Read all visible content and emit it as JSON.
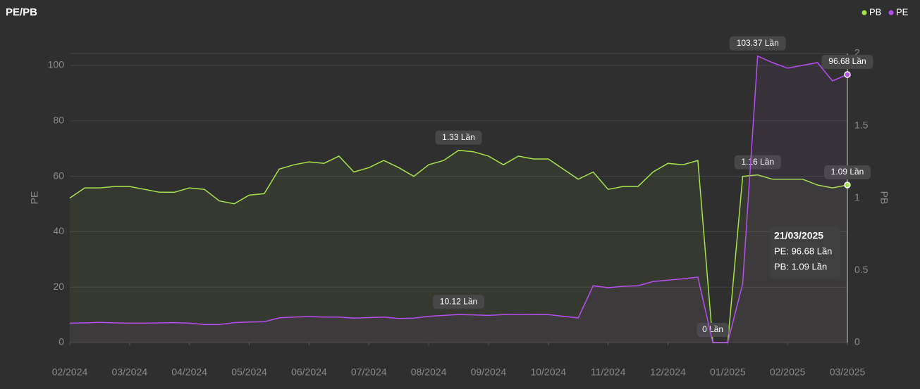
{
  "chart_data": {
    "type": "line",
    "title": "PE/PB",
    "y_label": "PE",
    "y2_label": "PB",
    "legend": "top-right",
    "x": [
      "01/02/2024",
      "08/02/2024",
      "15/02/2024",
      "22/02/2024",
      "01/03/2024",
      "08/03/2024",
      "15/03/2024",
      "22/03/2024",
      "01/04/2024",
      "08/04/2024",
      "15/04/2024",
      "22/04/2024",
      "01/05/2024",
      "08/05/2024",
      "15/05/2024",
      "22/05/2024",
      "01/06/2024",
      "08/06/2024",
      "15/06/2024",
      "22/06/2024",
      "01/07/2024",
      "08/07/2024",
      "15/07/2024",
      "22/07/2024",
      "01/08/2024",
      "08/08/2024",
      "15/08/2024",
      "22/08/2024",
      "01/09/2024",
      "08/09/2024",
      "15/09/2024",
      "22/09/2024",
      "01/10/2024",
      "08/10/2024",
      "15/10/2024",
      "22/10/2024",
      "01/11/2024",
      "08/11/2024",
      "15/11/2024",
      "22/11/2024",
      "01/12/2024",
      "08/12/2024",
      "15/12/2024",
      "22/12/2024",
      "01/01/2025",
      "08/01/2025",
      "15/01/2025",
      "22/01/2025",
      "01/02/2025",
      "08/02/2025",
      "15/02/2025",
      "22/02/2025",
      "21/03/2025"
    ],
    "xticks": [
      {
        "value": "01/02/2024",
        "label": "02/2024"
      },
      {
        "value": "01/03/2024",
        "label": "03/2024"
      },
      {
        "value": "01/04/2024",
        "label": "04/2024"
      },
      {
        "value": "01/05/2024",
        "label": "05/2024"
      },
      {
        "value": "01/06/2024",
        "label": "06/2024"
      },
      {
        "value": "01/07/2024",
        "label": "07/2024"
      },
      {
        "value": "01/08/2024",
        "label": "08/2024"
      },
      {
        "value": "01/09/2024",
        "label": "09/2024"
      },
      {
        "value": "01/10/2024",
        "label": "10/2024"
      },
      {
        "value": "01/11/2024",
        "label": "11/2024"
      },
      {
        "value": "01/12/2024",
        "label": "12/2024"
      },
      {
        "value": "01/01/2025",
        "label": "01/2025"
      },
      {
        "value": "01/02/2025",
        "label": "02/2025"
      },
      {
        "value": "21/03/2025",
        "label": "03/2025"
      }
    ],
    "ylim": [
      0,
      104.3
    ],
    "yticks": [
      0,
      20,
      40,
      60,
      80,
      100
    ],
    "y2lim": [
      0,
      2
    ],
    "y2ticks": [
      0,
      0.5,
      1,
      1.5,
      2
    ],
    "grid": true,
    "series": [
      {
        "name": "PB",
        "color": "#a6e34b",
        "axis": "y2",
        "values": [
          1.0,
          1.07,
          1.07,
          1.08,
          1.08,
          1.06,
          1.04,
          1.04,
          1.07,
          1.06,
          0.98,
          0.96,
          1.02,
          1.03,
          1.2,
          1.23,
          1.25,
          1.24,
          1.29,
          1.18,
          1.21,
          1.26,
          1.21,
          1.15,
          1.23,
          1.26,
          1.33,
          1.32,
          1.29,
          1.23,
          1.29,
          1.27,
          1.27,
          1.2,
          1.13,
          1.18,
          1.06,
          1.08,
          1.08,
          1.18,
          1.24,
          1.23,
          1.26,
          0,
          0,
          1.15,
          1.16,
          1.13,
          1.13,
          1.13,
          1.09,
          1.07,
          1.09
        ],
        "value_labels": [
          null,
          null,
          null,
          null,
          null,
          null,
          null,
          null,
          null,
          null,
          null,
          null,
          null,
          null,
          null,
          null,
          null,
          null,
          null,
          null,
          null,
          null,
          null,
          null,
          null,
          null,
          "1.33 Lần",
          null,
          null,
          null,
          null,
          null,
          null,
          null,
          null,
          null,
          null,
          null,
          null,
          null,
          null,
          null,
          null,
          "0 Lần",
          null,
          null,
          "1.16 Lần",
          null,
          null,
          null,
          null,
          null,
          "1.09 Lần"
        ]
      },
      {
        "name": "PE",
        "color": "#b64ef0",
        "values": [
          7.0,
          7.1,
          7.3,
          7.1,
          7.0,
          7.0,
          7.1,
          7.2,
          7.0,
          6.5,
          6.5,
          7.2,
          7.4,
          7.5,
          8.9,
          9.2,
          9.4,
          9.2,
          9.2,
          8.8,
          9.0,
          9.2,
          8.7,
          8.8,
          9.5,
          9.8,
          10.12,
          10.0,
          9.8,
          10.1,
          10.2,
          10.1,
          10.1,
          9.5,
          8.9,
          20.5,
          19.8,
          20.3,
          20.5,
          22.0,
          22.5,
          23.0,
          23.6,
          0,
          0,
          21.3,
          103.37,
          101,
          99,
          100,
          101,
          94.4,
          96.68
        ],
        "value_labels": [
          null,
          null,
          null,
          null,
          null,
          null,
          null,
          null,
          null,
          null,
          null,
          null,
          null,
          null,
          null,
          null,
          null,
          null,
          null,
          null,
          null,
          null,
          null,
          null,
          null,
          null,
          "10.12 Lần",
          null,
          null,
          null,
          null,
          null,
          null,
          null,
          null,
          null,
          null,
          null,
          null,
          null,
          null,
          null,
          null,
          null,
          null,
          null,
          "103.37 Lần",
          null,
          null,
          null,
          null,
          null,
          "96.68 Lần"
        ]
      }
    ],
    "tooltip": {
      "lines": [
        "PE: 96.68 Lần",
        "PB: 1.09 Lần"
      ]
    }
  }
}
